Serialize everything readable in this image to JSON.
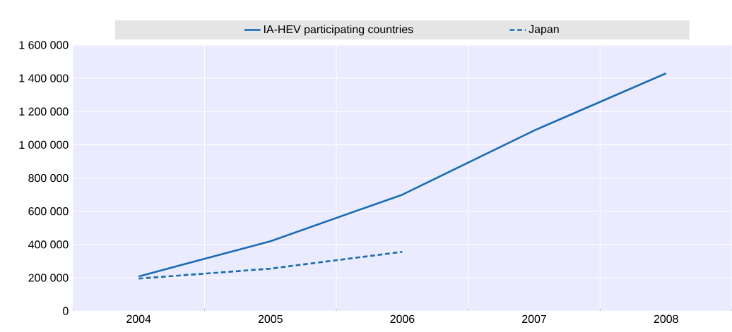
{
  "chart_data": {
    "type": "line",
    "categories": [
      "2004",
      "2005",
      "2006",
      "2007",
      "2008"
    ],
    "series": [
      {
        "name": "IA-HEV participating countries",
        "color": "#1a6db5",
        "values": [
          208000,
          420000,
          700000,
          1086000,
          1430000
        ],
        "line_style": "solid"
      },
      {
        "name": "Japan",
        "color": "#1a6db5",
        "values": [
          195000,
          255000,
          356000,
          null,
          null
        ],
        "line_style": "dashed"
      }
    ],
    "ylim": [
      0,
      1600000
    ],
    "yticks": [
      0,
      {
        "value": 200000,
        "label": "200 000"
      },
      {
        "value": 400000,
        "label": "400 000"
      },
      {
        "value": 600000,
        "label": "600 000"
      },
      {
        "value": 800000,
        "label": "800 000"
      },
      {
        "value": 1000000,
        "label": "1 000 000"
      },
      {
        "value": 1200000,
        "label": "1 200 000"
      },
      {
        "value": 1400000,
        "label": "1 400 000"
      },
      {
        "value": 1600000,
        "label": "1 600 000"
      }
    ],
    "grid": true,
    "legend": "top",
    "marker": "none"
  }
}
